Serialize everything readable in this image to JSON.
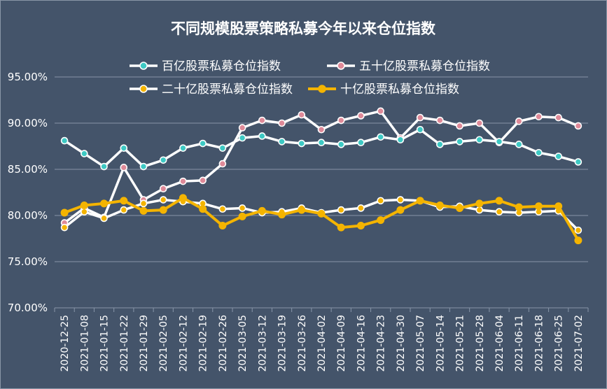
{
  "chart_data": {
    "type": "line",
    "title": "不同规模股票策略私募今年以来仓位指数",
    "ylim": [
      70,
      95
    ],
    "yticks": [
      "70.00%",
      "75.00%",
      "80.00%",
      "85.00%",
      "90.00%",
      "95.00%"
    ],
    "ytick_values": [
      70,
      75,
      80,
      85,
      90,
      95
    ],
    "grid": true,
    "legend_position": "top",
    "categories": [
      "2020-12-25",
      "2021-01-08",
      "2021-01-15",
      "2021-01-22",
      "2021-01-29",
      "2021-02-05",
      "2021-02-12",
      "2021-02-19",
      "2021-02-26",
      "2021-03-05",
      "2021-03-12",
      "2021-03-19",
      "2021-03-26",
      "2021-04-02",
      "2021-04-09",
      "2021-04-16",
      "2021-04-23",
      "2021-04-30",
      "2021-05-07",
      "2021-05-14",
      "2021-05-21",
      "2021-05-28",
      "2021-06-04",
      "2021-06-11",
      "2021-06-18",
      "2021-06-25",
      "2021-07-02"
    ],
    "series": [
      {
        "name": "百亿股票私募仓位指数",
        "color": "#3ec9c4",
        "style": "white-line",
        "values": [
          88.1,
          86.7,
          85.3,
          87.3,
          85.3,
          86.0,
          87.3,
          87.8,
          87.3,
          88.4,
          88.6,
          88.0,
          87.8,
          87.9,
          87.7,
          87.9,
          88.5,
          88.2,
          89.3,
          87.7,
          88.0,
          88.2,
          88.0,
          87.7,
          86.8,
          86.4,
          85.8
        ]
      },
      {
        "name": "五十亿股票私募仓位指数",
        "color": "#df8a99",
        "style": "white-line",
        "values": [
          79.2,
          80.8,
          79.8,
          85.2,
          81.7,
          82.9,
          83.7,
          83.8,
          85.6,
          89.5,
          90.3,
          90.0,
          90.9,
          89.3,
          90.3,
          90.8,
          91.3,
          88.4,
          90.6,
          90.3,
          89.7,
          90.0,
          87.9,
          90.2,
          90.7,
          90.6,
          89.7
        ]
      },
      {
        "name": "二十亿股票私募仓位指数",
        "color": "#f4b400",
        "style": "white-line",
        "values": [
          78.7,
          80.4,
          79.7,
          80.6,
          81.3,
          81.7,
          81.5,
          81.3,
          80.7,
          80.8,
          80.3,
          80.4,
          80.8,
          80.3,
          80.6,
          80.8,
          81.6,
          81.7,
          81.6,
          80.9,
          81.0,
          80.6,
          80.4,
          80.3,
          80.4,
          80.5,
          78.4
        ]
      },
      {
        "name": "十亿股票私募仓位指数",
        "color": "#f4b400",
        "style": "gold-line",
        "values": [
          80.3,
          81.1,
          81.3,
          81.6,
          80.5,
          80.6,
          81.9,
          80.7,
          78.9,
          79.9,
          80.5,
          80.1,
          80.6,
          80.2,
          78.7,
          78.9,
          79.5,
          80.6,
          81.6,
          81.1,
          80.8,
          81.3,
          81.6,
          80.9,
          81.0,
          81.0,
          77.3
        ]
      }
    ]
  }
}
